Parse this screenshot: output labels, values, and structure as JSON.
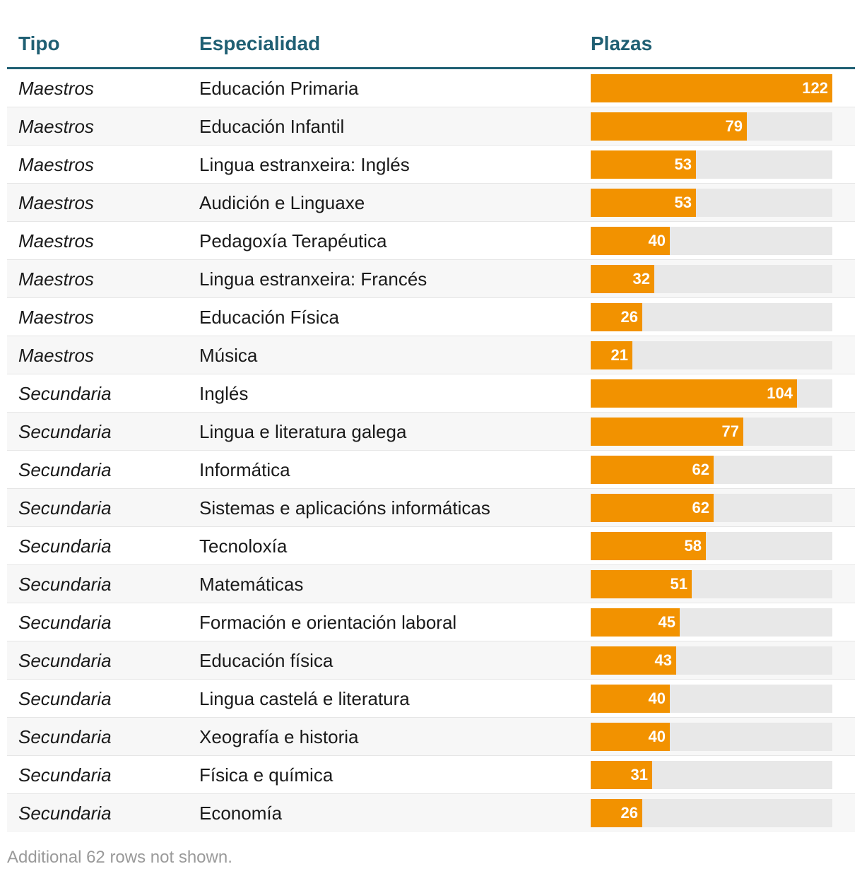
{
  "colors": {
    "header_text": "#1f5f73",
    "bar_fill": "#f29200",
    "bar_track": "#e8e8e8",
    "footnote": "#9a9a9a"
  },
  "table": {
    "headers": {
      "tipo": "Tipo",
      "especialidad": "Especialidad",
      "plazas": "Plazas"
    },
    "footnote": "Additional 62 rows not shown."
  },
  "chart_data": {
    "type": "table",
    "columns": [
      "Tipo",
      "Especialidad",
      "Plazas"
    ],
    "max_value": 122,
    "rows": [
      {
        "tipo": "Maestros",
        "especialidad": "Educación Primaria",
        "plazas": 122
      },
      {
        "tipo": "Maestros",
        "especialidad": "Educación Infantil",
        "plazas": 79
      },
      {
        "tipo": "Maestros",
        "especialidad": "Lingua estranxeira: Inglés",
        "plazas": 53
      },
      {
        "tipo": "Maestros",
        "especialidad": "Audición e Linguaxe",
        "plazas": 53
      },
      {
        "tipo": "Maestros",
        "especialidad": "Pedagoxía Terapéutica",
        "plazas": 40
      },
      {
        "tipo": "Maestros",
        "especialidad": "Lingua estranxeira: Francés",
        "plazas": 32
      },
      {
        "tipo": "Maestros",
        "especialidad": "Educación Física",
        "plazas": 26
      },
      {
        "tipo": "Maestros",
        "especialidad": "Música",
        "plazas": 21
      },
      {
        "tipo": "Secundaria",
        "especialidad": "Inglés",
        "plazas": 104
      },
      {
        "tipo": "Secundaria",
        "especialidad": "Lingua e literatura galega",
        "plazas": 77
      },
      {
        "tipo": "Secundaria",
        "especialidad": "Informática",
        "plazas": 62
      },
      {
        "tipo": "Secundaria",
        "especialidad": "Sistemas e aplicacións informáticas",
        "plazas": 62
      },
      {
        "tipo": "Secundaria",
        "especialidad": "Tecnoloxía",
        "plazas": 58
      },
      {
        "tipo": "Secundaria",
        "especialidad": "Matemáticas",
        "plazas": 51
      },
      {
        "tipo": "Secundaria",
        "especialidad": "Formación e orientación laboral",
        "plazas": 45
      },
      {
        "tipo": "Secundaria",
        "especialidad": "Educación física",
        "plazas": 43
      },
      {
        "tipo": "Secundaria",
        "especialidad": "Lingua castelá e literatura",
        "plazas": 40
      },
      {
        "tipo": "Secundaria",
        "especialidad": "Xeografía e historia",
        "plazas": 40
      },
      {
        "tipo": "Secundaria",
        "especialidad": "Física e química",
        "plazas": 31
      },
      {
        "tipo": "Secundaria",
        "especialidad": "Economía",
        "plazas": 26
      }
    ]
  }
}
